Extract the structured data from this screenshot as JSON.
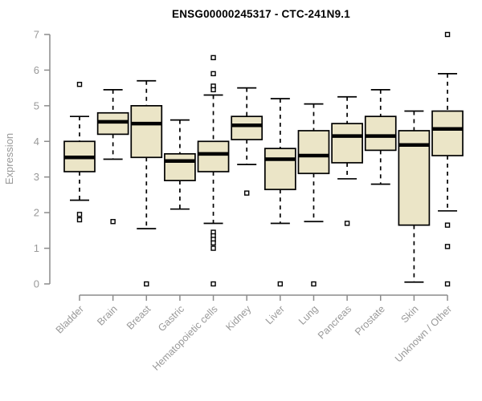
{
  "title": "ENSG00000245317 - CTC-241N9.1",
  "colors": {
    "box_fill": "#EBE5C7",
    "box_stroke": "#000000",
    "median": "#000000",
    "axis": "#8c8c8c",
    "tick_label": "#999999",
    "title": "#000000",
    "outlier_fill": "#ffffff"
  },
  "chart_data": {
    "type": "boxplot",
    "title": "ENSG00000245317 - CTC-241N9.1",
    "xlabel": "",
    "ylabel": "Expression",
    "ylim": [
      0,
      7
    ],
    "yticks": [
      0,
      1,
      2,
      3,
      4,
      5,
      6,
      7
    ],
    "grid": false,
    "categories": [
      "Bladder",
      "Brain",
      "Breast",
      "Gastric",
      "Hematopoietic cells",
      "Kidney",
      "Liver",
      "Lung",
      "Pancreas",
      "Prostate",
      "Skin",
      "Unknown / Other"
    ],
    "boxes": [
      {
        "category": "Bladder",
        "whisker_low": 2.35,
        "q1": 3.15,
        "median": 3.55,
        "q3": 4.0,
        "whisker_high": 4.7,
        "outliers": [
          5.6,
          1.95,
          1.8
        ]
      },
      {
        "category": "Brain",
        "whisker_low": 3.5,
        "q1": 4.2,
        "median": 4.55,
        "q3": 4.8,
        "whisker_high": 5.45,
        "outliers": [
          1.75
        ]
      },
      {
        "category": "Breast",
        "whisker_low": 1.55,
        "q1": 3.55,
        "median": 4.5,
        "q3": 5.0,
        "whisker_high": 5.7,
        "outliers": [
          0
        ]
      },
      {
        "category": "Gastric",
        "whisker_low": 2.1,
        "q1": 2.9,
        "median": 3.45,
        "q3": 3.65,
        "whisker_high": 4.6,
        "outliers": []
      },
      {
        "category": "Hematopoietic cells",
        "whisker_low": 1.7,
        "q1": 3.15,
        "median": 3.65,
        "q3": 4.0,
        "whisker_high": 5.3,
        "outliers": [
          6.35,
          5.9,
          5.55,
          5.45,
          1.45,
          1.35,
          1.25,
          1.15,
          1.0,
          0
        ]
      },
      {
        "category": "Kidney",
        "whisker_low": 3.35,
        "q1": 4.05,
        "median": 4.45,
        "q3": 4.7,
        "whisker_high": 5.5,
        "outliers": [
          2.55
        ]
      },
      {
        "category": "Liver",
        "whisker_low": 1.7,
        "q1": 2.65,
        "median": 3.5,
        "q3": 3.8,
        "whisker_high": 5.2,
        "outliers": [
          0
        ]
      },
      {
        "category": "Lung",
        "whisker_low": 1.75,
        "q1": 3.1,
        "median": 3.6,
        "q3": 4.3,
        "whisker_high": 5.05,
        "outliers": [
          0
        ]
      },
      {
        "category": "Pancreas",
        "whisker_low": 2.95,
        "q1": 3.4,
        "median": 4.15,
        "q3": 4.5,
        "whisker_high": 5.25,
        "outliers": [
          1.7
        ]
      },
      {
        "category": "Prostate",
        "whisker_low": 2.8,
        "q1": 3.75,
        "median": 4.15,
        "q3": 4.7,
        "whisker_high": 5.45,
        "outliers": []
      },
      {
        "category": "Skin",
        "whisker_low": 0.05,
        "q1": 1.65,
        "median": 3.9,
        "q3": 4.3,
        "whisker_high": 4.85,
        "outliers": []
      },
      {
        "category": "Unknown / Other",
        "whisker_low": 2.05,
        "q1": 3.6,
        "median": 4.35,
        "q3": 4.85,
        "whisker_high": 5.9,
        "outliers": [
          7.0,
          1.65,
          1.05,
          0
        ]
      }
    ]
  }
}
